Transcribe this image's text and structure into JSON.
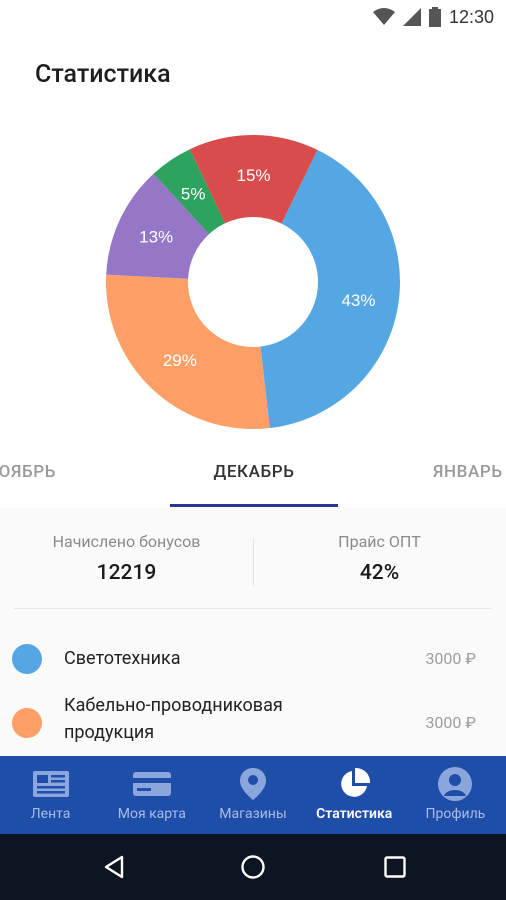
{
  "status_bar": {
    "time": "12:30",
    "icons": [
      "wifi-icon",
      "signal-icon",
      "battery-icon"
    ]
  },
  "page": {
    "title": "Статистика"
  },
  "chart_data": {
    "type": "pie",
    "donut": true,
    "slices": [
      {
        "label": "43%",
        "value": 43,
        "color": "#55a7e4"
      },
      {
        "label": "29%",
        "value": 29,
        "color": "#ff9f68"
      },
      {
        "label": "13%",
        "value": 13,
        "color": "#9576c7"
      },
      {
        "label": "5%",
        "value": 5,
        "color": "#2ea25f"
      },
      {
        "label": "15%",
        "value": 15,
        "color": "#d84c4c"
      }
    ]
  },
  "tabs": {
    "prev": "НОЯБРЬ",
    "current": "ДЕКАБРЬ",
    "next": "ЯНВАРЬ"
  },
  "summary": {
    "bonuses_label": "Начислено бонусов",
    "bonuses_value": "12219",
    "price_label": "Прайс ОПТ",
    "price_value": "42%"
  },
  "categories": [
    {
      "name": "Светотехника",
      "amount": "3000 ₽",
      "color": "#55a7e4"
    },
    {
      "name": "Кабельно-проводниковая продукция",
      "amount": "3000 ₽",
      "color": "#ff9f68"
    }
  ],
  "bottom_nav": {
    "items": [
      {
        "label": "Лента",
        "icon": "news-icon"
      },
      {
        "label": "Моя карта",
        "icon": "card-icon"
      },
      {
        "label": "Магазины",
        "icon": "location-pin-icon"
      },
      {
        "label": "Статистика",
        "icon": "pie-chart-icon",
        "active": true
      },
      {
        "label": "Профиль",
        "icon": "profile-icon"
      }
    ]
  },
  "system_nav": {
    "icons": [
      "back-icon",
      "home-icon",
      "recents-icon"
    ]
  },
  "colors": {
    "nav_bg": "#1f4ea8",
    "tab_indicator": "#283593",
    "system_nav_bg": "#0d1522"
  }
}
